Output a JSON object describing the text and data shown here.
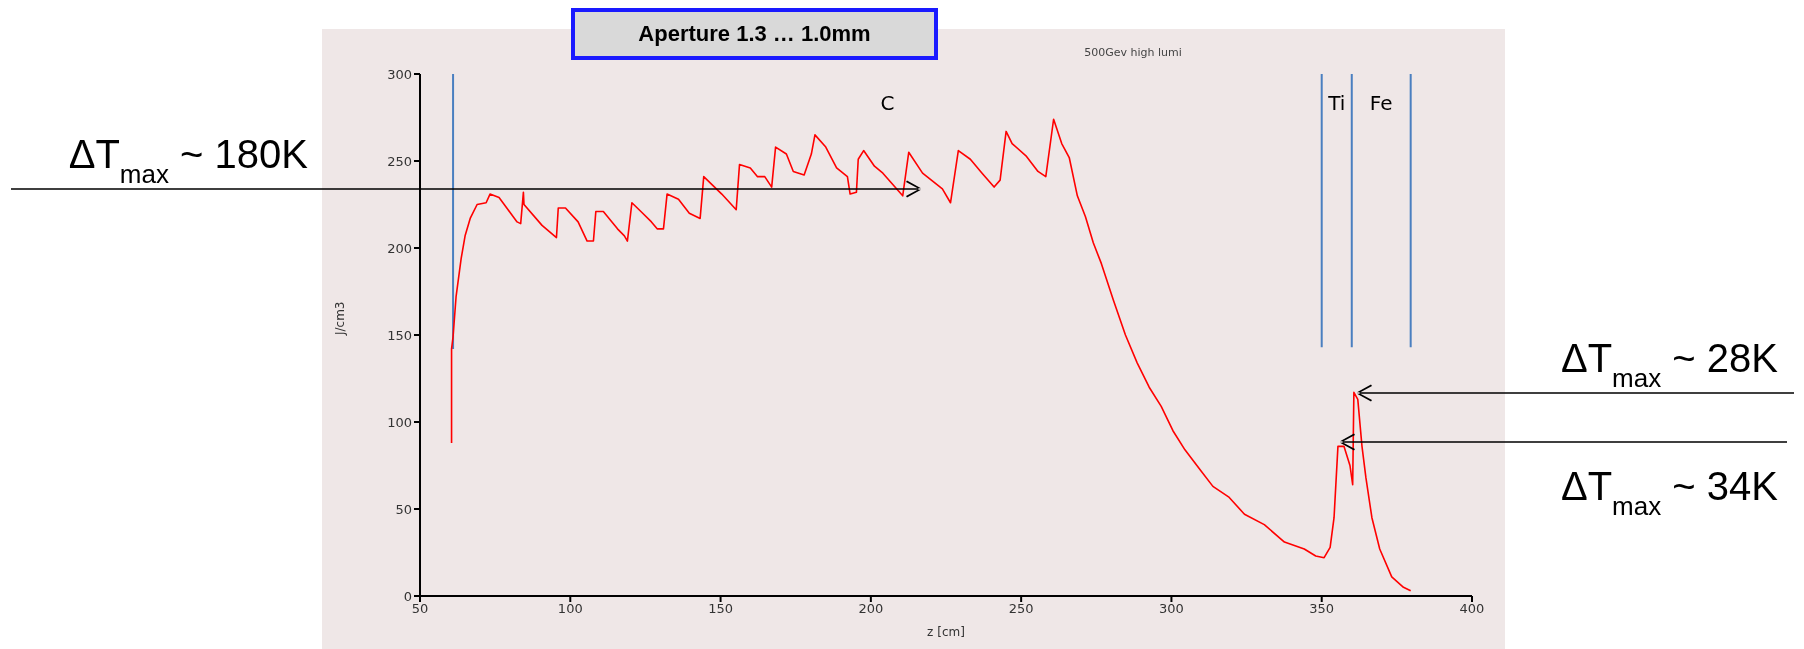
{
  "chart_data": {
    "type": "line",
    "title": "500Gev high lumi",
    "xlabel": "z [cm]",
    "ylabel": "J/cm3",
    "annotations": [
      "Aperture 1.3 … 1.0mm",
      "C",
      "Ti",
      "Fe",
      "ΔT$_{max}$ ~ 180K",
      "ΔT$_{max}$ ~ 28K",
      "ΔT$_{max}$ ~ 34K"
    ],
    "xlim": [
      50,
      400
    ],
    "ylim": [
      0,
      300
    ],
    "xticks": [
      50,
      100,
      150,
      200,
      250,
      300,
      350,
      400
    ],
    "yticks": [
      0,
      50,
      100,
      150,
      200,
      250,
      300
    ],
    "grid": false,
    "series": [
      {
        "color": "#ff0000",
        "x": [
          60.5,
          60.5,
          61,
          62,
          63.7,
          65,
          66.7,
          69,
          72,
          73.3,
          76.3,
          82.3,
          83.5,
          84.4,
          84.6,
          90.6,
          95.4,
          96,
          98.4,
          102.6,
          105.6,
          107.7,
          108.5,
          111,
          115.7,
          118,
          119,
          120.5,
          123.5,
          127,
          128.9,
          131,
          132.2,
          136,
          139.6,
          143.2,
          144.4,
          146.8,
          150.4,
          155.2,
          156.3,
          159.9,
          162.3,
          164.7,
          167,
          168.3,
          171.9,
          174.2,
          177.8,
          180.2,
          181.4,
          185,
          188.6,
          192.2,
          193.1,
          195.2,
          195.8,
          197.6,
          201.2,
          204,
          210.6,
          212.6,
          217.2,
          223.8,
          226.5,
          229.1,
          233.1,
          237,
          241,
          243,
          245,
          247,
          251.6,
          255.6,
          258.2,
          260.8,
          263.5,
          266,
          268.7,
          271.4,
          274,
          276.7,
          280.7,
          284.7,
          288.6,
          292.6,
          296.6,
          300.5,
          304.5,
          309.8,
          313.8,
          319,
          324.3,
          330.9,
          337.6,
          344.2,
          348,
          350.8,
          352.8,
          354.1,
          355.4,
          357.4,
          359.4,
          360.3,
          360.7,
          362,
          363.4,
          364.7,
          366.7,
          369.3,
          373.3,
          377.2,
          379.6
        ],
        "values": [
          88,
          142,
          149,
          172,
          194,
          207,
          217,
          225,
          226,
          231,
          229,
          215,
          214,
          232,
          225,
          213,
          206,
          223,
          223,
          215,
          204,
          204,
          221,
          221,
          211,
          207,
          204,
          226,
          221,
          215,
          211,
          211,
          231,
          228,
          220,
          217,
          241,
          237,
          231,
          222,
          248,
          246,
          241,
          241,
          235,
          258,
          254,
          244,
          242,
          254,
          265,
          258,
          246,
          241,
          231,
          232,
          251,
          256,
          247,
          243,
          230,
          255,
          243,
          234,
          226,
          256,
          251,
          243,
          235,
          239,
          267,
          260,
          253,
          244,
          241,
          274,
          260,
          252,
          230,
          218,
          203,
          191,
          170,
          150,
          134,
          120,
          109,
          95,
          84,
          72,
          63,
          57,
          47,
          41,
          31,
          27,
          23,
          22,
          28,
          45,
          86,
          86,
          75,
          64,
          117,
          113,
          86,
          68,
          45,
          27,
          11,
          5,
          3
        ]
      },
      {
        "color": "#4a7fc0",
        "x": [
          61,
          61
        ],
        "values": [
          142,
          300
        ]
      },
      {
        "color": "#4a7fc0",
        "x": [
          350,
          350
        ],
        "values": [
          143,
          300
        ]
      },
      {
        "color": "#4a7fc0",
        "x": [
          360,
          360
        ],
        "values": [
          143,
          300
        ]
      },
      {
        "color": "#4a7fc0",
        "x": [
          379.6,
          379.6
        ],
        "values": [
          143,
          300
        ]
      }
    ]
  }
}
